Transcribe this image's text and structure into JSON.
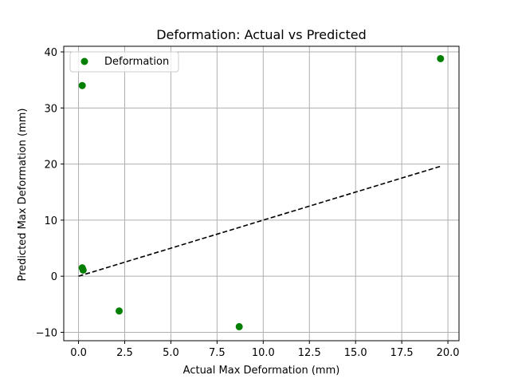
{
  "chart_data": {
    "type": "scatter",
    "title": "Deformation: Actual vs Predicted",
    "xlabel": "Actual Max Deformation (mm)",
    "ylabel": "Predicted Max Deformation (mm)",
    "xlim": [
      -0.8,
      20.6
    ],
    "ylim": [
      -11.5,
      41.0
    ],
    "xticks": [
      0.0,
      2.5,
      5.0,
      7.5,
      10.0,
      12.5,
      15.0,
      17.5,
      20.0
    ],
    "xtick_labels": [
      "0.0",
      "2.5",
      "5.0",
      "7.5",
      "10.0",
      "12.5",
      "15.0",
      "17.5",
      "20.0"
    ],
    "yticks": [
      -10,
      0,
      10,
      20,
      30,
      40
    ],
    "ytick_labels": [
      "−10",
      "0",
      "10",
      "20",
      "30",
      "40"
    ],
    "grid": true,
    "legend_position": "top-left",
    "series": [
      {
        "name": "Deformation",
        "color": "#007f00",
        "points": [
          {
            "x": 0.2,
            "y": 34.0
          },
          {
            "x": 0.2,
            "y": 1.5
          },
          {
            "x": 0.25,
            "y": 1.1
          },
          {
            "x": 2.2,
            "y": -6.2
          },
          {
            "x": 8.7,
            "y": -9.0
          },
          {
            "x": 19.6,
            "y": 38.8
          }
        ]
      }
    ],
    "reference_line": {
      "style": "dashed",
      "color": "#000000",
      "x": [
        0.0,
        19.6
      ],
      "y": [
        0.0,
        19.6
      ]
    }
  }
}
